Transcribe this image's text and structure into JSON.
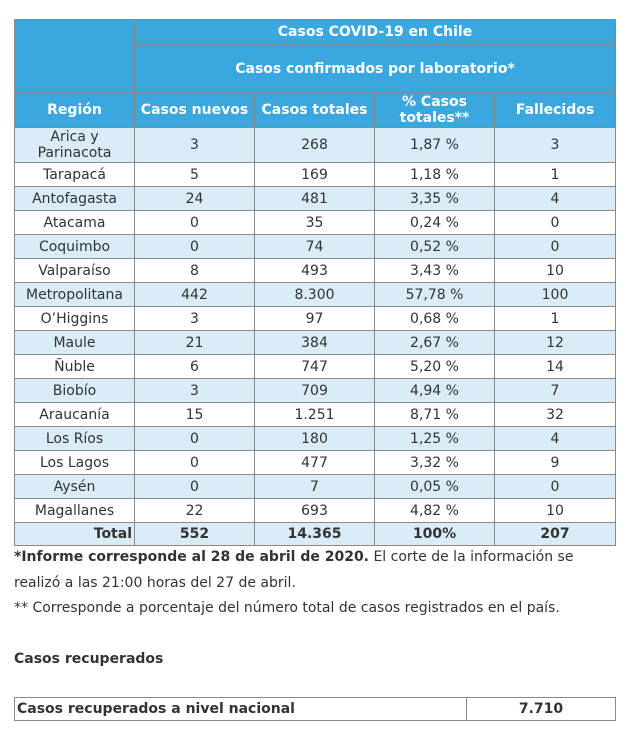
{
  "table": {
    "title": "Casos COVID-19 en Chile",
    "subtitle": "Casos confirmados por laboratorio*",
    "columns": [
      "Región",
      "Casos nuevos",
      "Casos totales",
      "% Casos totales**",
      "Fallecidos"
    ],
    "rows": [
      {
        "region": "Arica y Parinacota",
        "nuevos": "3",
        "totales": "268",
        "pct": "1,87 %",
        "fallecidos": "3"
      },
      {
        "region": "Tarapacá",
        "nuevos": "5",
        "totales": "169",
        "pct": "1,18 %",
        "fallecidos": "1"
      },
      {
        "region": "Antofagasta",
        "nuevos": "24",
        "totales": "481",
        "pct": "3,35 %",
        "fallecidos": "4"
      },
      {
        "region": "Atacama",
        "nuevos": "0",
        "totales": "35",
        "pct": "0,24 %",
        "fallecidos": "0"
      },
      {
        "region": "Coquimbo",
        "nuevos": "0",
        "totales": "74",
        "pct": "0,52 %",
        "fallecidos": "0"
      },
      {
        "region": "Valparaíso",
        "nuevos": "8",
        "totales": "493",
        "pct": "3,43 %",
        "fallecidos": "10"
      },
      {
        "region": "Metropolitana",
        "nuevos": "442",
        "totales": "8.300",
        "pct": "57,78 %",
        "fallecidos": "100"
      },
      {
        "region": "O’Higgins",
        "nuevos": "3",
        "totales": "97",
        "pct": "0,68 %",
        "fallecidos": "1"
      },
      {
        "region": "Maule",
        "nuevos": "21",
        "totales": "384",
        "pct": "2,67 %",
        "fallecidos": "12"
      },
      {
        "region": "Ñuble",
        "nuevos": "6",
        "totales": "747",
        "pct": "5,20 %",
        "fallecidos": "14"
      },
      {
        "region": "Biobío",
        "nuevos": "3",
        "totales": "709",
        "pct": "4,94 %",
        "fallecidos": "7"
      },
      {
        "region": "Araucanía",
        "nuevos": "15",
        "totales": "1.251",
        "pct": "8,71 %",
        "fallecidos": "32"
      },
      {
        "region": "Los Ríos",
        "nuevos": "0",
        "totales": "180",
        "pct": "1,25 %",
        "fallecidos": "4"
      },
      {
        "region": "Los Lagos",
        "nuevos": "0",
        "totales": "477",
        "pct": "3,32 %",
        "fallecidos": "9"
      },
      {
        "region": "Aysén",
        "nuevos": "0",
        "totales": "7",
        "pct": "0,05 %",
        "fallecidos": "0"
      },
      {
        "region": "Magallanes",
        "nuevos": "22",
        "totales": "693",
        "pct": "4,82 %",
        "fallecidos": "10"
      }
    ],
    "total": {
      "label": "Total",
      "nuevos": "552",
      "totales": "14.365",
      "pct": "100%",
      "fallecidos": "207"
    }
  },
  "notes": {
    "note1_bold": "*Informe corresponde al 28 de abril de 2020.",
    "note1_rest": " El corte de la información se",
    "note1_line2": "realizó a las 21:00 horas del 27 de abril.",
    "note2": "** Corresponde a porcentaje del número total de casos registrados en el país."
  },
  "recovered": {
    "title": "Casos recuperados",
    "label": "Casos recuperados a nivel nacional",
    "value": "7.710"
  },
  "colors": {
    "header_bg": "#3aa8df",
    "row_alt_bg": "#d9ecf8"
  }
}
